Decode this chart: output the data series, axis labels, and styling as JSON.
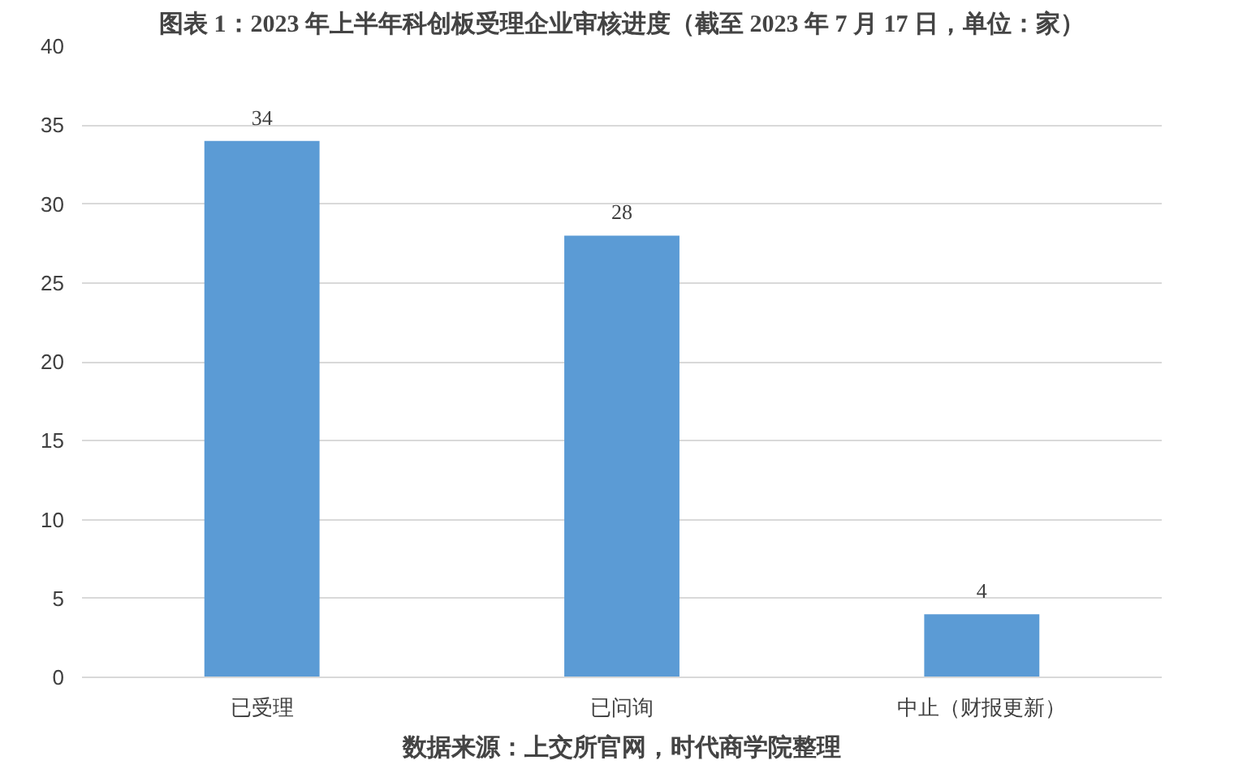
{
  "chart_data": {
    "type": "bar",
    "title": "图表 1：2023 年上半年科创板受理企业审核进度（截至 2023 年 7 月 17 日，单位：家）",
    "categories": [
      "已受理",
      "已问询",
      "中止（财报更新）"
    ],
    "values": [
      34,
      28,
      4
    ],
    "color": "#5b9bd5",
    "ylim": [
      0,
      40
    ],
    "yticks": [
      0,
      5,
      10,
      15,
      20,
      25,
      30,
      35,
      40
    ],
    "grid": "y",
    "data_labels": true,
    "annotations": [
      "数据来源：上交所官网，时代商学院整理"
    ]
  }
}
